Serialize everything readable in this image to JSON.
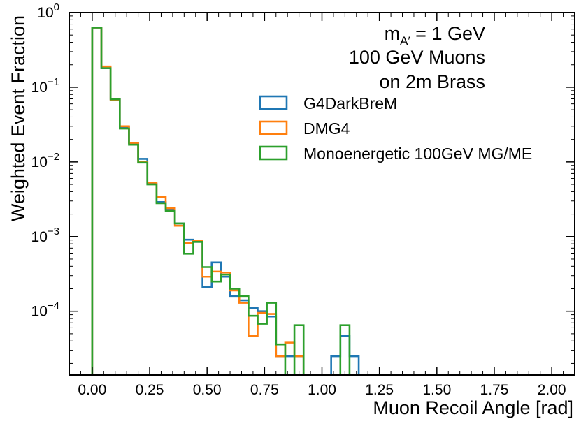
{
  "chart_data": {
    "type": "histogram",
    "yscale": "log",
    "xlabel": "Muon Recoil Angle [rad]",
    "ylabel": "Weighted Event Fraction",
    "xlim": [
      -0.1,
      2.1
    ],
    "ylim": [
      1.4e-05,
      1.0
    ],
    "bin_width": 0.04,
    "x_ticks": [
      {
        "value": 0.0,
        "label": "0.00"
      },
      {
        "value": 0.25,
        "label": "0.25"
      },
      {
        "value": 0.5,
        "label": "0.50"
      },
      {
        "value": 0.75,
        "label": "0.75"
      },
      {
        "value": 1.0,
        "label": "1.00"
      },
      {
        "value": 1.25,
        "label": "1.25"
      },
      {
        "value": 1.5,
        "label": "1.50"
      },
      {
        "value": 1.75,
        "label": "1.75"
      },
      {
        "value": 2.0,
        "label": "2.00"
      }
    ],
    "y_ticks": [
      {
        "value": 1.0,
        "base": "10",
        "exp": "0"
      },
      {
        "value": 0.1,
        "base": "10",
        "exp": "−1"
      },
      {
        "value": 0.01,
        "base": "10",
        "exp": "−2"
      },
      {
        "value": 0.001,
        "base": "10",
        "exp": "−3"
      },
      {
        "value": 0.0001,
        "base": "10",
        "exp": "−4"
      }
    ],
    "annotation": {
      "line1_prefix": "m",
      "line1_sub": "A′",
      "line1_suffix": " = 1 GeV",
      "line2": "100 GeV Muons",
      "line3": "on 2m Brass"
    },
    "legend_position": "upper-right",
    "series": [
      {
        "name": "G4DarkBreM",
        "color": "#1f77b4",
        "values": [
          0.63,
          0.18,
          0.07,
          0.029,
          0.018,
          0.011,
          0.0051,
          0.0029,
          0.0023,
          0.0015,
          0.00091,
          0.00085,
          0.00021,
          0.00045,
          0.00029,
          0.00016,
          0.00014,
          0.00011,
          0.0001,
          8.5e-05,
          2.5e-05,
          2.5e-05,
          2.5e-05,
          0,
          0,
          0,
          2.5e-05,
          4.7e-05,
          2.5e-05,
          0,
          0,
          0,
          0,
          0,
          0,
          0,
          0,
          0,
          0,
          0,
          0,
          0,
          0,
          0,
          0,
          0,
          0,
          0,
          0,
          0,
          0
        ]
      },
      {
        "name": "DMG4",
        "color": "#ff7f0e",
        "values": [
          0.63,
          0.19,
          0.068,
          0.03,
          0.018,
          0.01,
          0.0053,
          0.0034,
          0.0024,
          0.0014,
          0.00082,
          0.00088,
          0.00029,
          0.00034,
          0.00033,
          0.00019,
          0.00013,
          4.7e-05,
          9.5e-05,
          9.2e-05,
          2.5e-05,
          3.8e-05,
          2.5e-05,
          0,
          0,
          0,
          0,
          0,
          0,
          0,
          0,
          0,
          0,
          0,
          0,
          0,
          0,
          0,
          0,
          0,
          0,
          0,
          0,
          0,
          0,
          0,
          0,
          0,
          0,
          0,
          0
        ]
      },
      {
        "name": "Monoenergetic 100GeV MG/ME",
        "color": "#2ca02c",
        "values": [
          0.63,
          0.18,
          0.069,
          0.028,
          0.017,
          0.0098,
          0.005,
          0.0028,
          0.0022,
          0.0015,
          0.00059,
          0.00085,
          0.00039,
          0.00025,
          0.00031,
          0.0002,
          0.00016,
          8.7e-05,
          6.8e-05,
          0.00013,
          3.6e-05,
          0,
          6.5e-05,
          0,
          0,
          0,
          0,
          6.5e-05,
          0,
          0,
          0,
          0,
          0,
          0,
          0,
          0,
          0,
          0,
          0,
          0,
          0,
          0,
          0,
          0,
          0,
          0,
          0,
          0,
          0,
          0,
          0
        ]
      }
    ]
  }
}
